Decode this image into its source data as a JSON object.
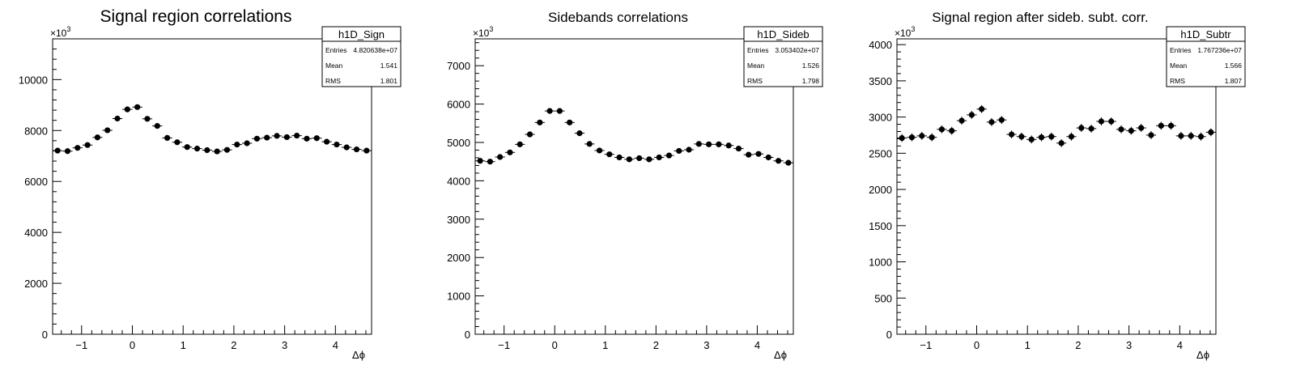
{
  "chart_data": [
    {
      "type": "scatter",
      "title": "Signal region correlations",
      "xlabel": "Δϕ",
      "ylabel": "",
      "y_exponent_label": "×10",
      "y_exponent_sup": "3",
      "xlim": [
        -1.5708,
        4.7124
      ],
      "ylim": [
        0,
        11600
      ],
      "x_ticks": [
        -1,
        0,
        1,
        2,
        3,
        4
      ],
      "x_tick_labels": [
        "−1",
        "0",
        "1",
        "2",
        "3",
        "4"
      ],
      "y_ticks": [
        0,
        2000,
        4000,
        6000,
        8000,
        10000
      ],
      "y_tick_labels": [
        "0",
        "2000",
        "4000",
        "6000",
        "8000",
        "10000"
      ],
      "stats_box": {
        "name": "h1D_Sign",
        "rows": [
          {
            "label": "Entries",
            "value": "4.820638e+07"
          },
          {
            "label": "Mean",
            "value": "1.541"
          },
          {
            "label": "RMS",
            "value": "1.801"
          }
        ]
      },
      "y_errors": [
        45,
        45,
        45,
        45,
        45,
        45,
        45,
        45,
        45,
        45,
        45,
        45,
        45,
        45,
        45,
        45,
        45,
        45,
        45,
        45,
        45,
        45,
        45,
        45,
        45,
        45,
        45,
        45,
        45,
        45,
        45,
        45
      ],
      "values": [
        7210,
        7190,
        7320,
        7430,
        7730,
        8010,
        8470,
        8830,
        8920,
        8460,
        8180,
        7710,
        7540,
        7350,
        7290,
        7230,
        7180,
        7240,
        7450,
        7500,
        7680,
        7720,
        7790,
        7740,
        7800,
        7680,
        7700,
        7560,
        7450,
        7340,
        7260,
        7210
      ]
    },
    {
      "type": "scatter",
      "title": "Sidebands correlations",
      "xlabel": "Δϕ",
      "ylabel": "",
      "y_exponent_label": "×10",
      "y_exponent_sup": "3",
      "xlim": [
        -1.5708,
        4.7124
      ],
      "ylim": [
        0,
        7700
      ],
      "x_ticks": [
        -1,
        0,
        1,
        2,
        3,
        4
      ],
      "x_tick_labels": [
        "−1",
        "0",
        "1",
        "2",
        "3",
        "4"
      ],
      "y_ticks": [
        0,
        1000,
        2000,
        3000,
        4000,
        5000,
        6000,
        7000
      ],
      "y_tick_labels": [
        "0",
        "1000",
        "2000",
        "3000",
        "4000",
        "5000",
        "6000",
        "7000"
      ],
      "stats_box": {
        "name": "h1D_Sideb",
        "rows": [
          {
            "label": "Entries",
            "value": "3.053402e+07"
          },
          {
            "label": "Mean",
            "value": "1.526"
          },
          {
            "label": "RMS",
            "value": "1.798"
          }
        ]
      },
      "y_errors": [
        30,
        30,
        30,
        30,
        30,
        30,
        30,
        30,
        30,
        30,
        30,
        30,
        30,
        30,
        30,
        30,
        30,
        30,
        30,
        30,
        30,
        30,
        30,
        30,
        30,
        30,
        30,
        30,
        30,
        30,
        30,
        30
      ],
      "values": [
        4520,
        4500,
        4620,
        4740,
        4950,
        5210,
        5520,
        5820,
        5820,
        5520,
        5240,
        4960,
        4790,
        4690,
        4610,
        4560,
        4590,
        4560,
        4610,
        4660,
        4780,
        4810,
        4960,
        4950,
        4950,
        4920,
        4840,
        4680,
        4700,
        4610,
        4520,
        4470
      ]
    },
    {
      "type": "scatter",
      "title": "Signal region after sideb. subt. corr.",
      "xlabel": "Δϕ",
      "ylabel": "",
      "y_exponent_label": "×10",
      "y_exponent_sup": "3",
      "xlim": [
        -1.5708,
        4.7124
      ],
      "ylim": [
        0,
        4080
      ],
      "x_ticks": [
        -1,
        0,
        1,
        2,
        3,
        4
      ],
      "x_tick_labels": [
        "−1",
        "0",
        "1",
        "2",
        "3",
        "4"
      ],
      "y_ticks": [
        0,
        500,
        1000,
        1500,
        2000,
        2500,
        3000,
        3500,
        4000
      ],
      "y_tick_labels": [
        "0",
        "500",
        "1000",
        "1500",
        "2000",
        "2500",
        "3000",
        "3500",
        "4000"
      ],
      "stats_box": {
        "name": "h1D_Subtr",
        "rows": [
          {
            "label": "Entries",
            "value": "1.767236e+07"
          },
          {
            "label": "Mean",
            "value": "1.566"
          },
          {
            "label": "RMS",
            "value": "1.807"
          }
        ]
      },
      "y_errors": [
        55,
        55,
        55,
        55,
        55,
        55,
        55,
        55,
        55,
        55,
        55,
        55,
        55,
        55,
        55,
        55,
        55,
        55,
        55,
        55,
        55,
        55,
        55,
        55,
        55,
        55,
        55,
        55,
        55,
        55,
        55,
        55
      ],
      "values": [
        2710,
        2720,
        2740,
        2720,
        2830,
        2810,
        2950,
        3030,
        3110,
        2930,
        2960,
        2760,
        2730,
        2690,
        2720,
        2730,
        2640,
        2730,
        2850,
        2840,
        2940,
        2940,
        2830,
        2810,
        2850,
        2750,
        2880,
        2880,
        2740,
        2740,
        2730,
        2790
      ]
    }
  ]
}
